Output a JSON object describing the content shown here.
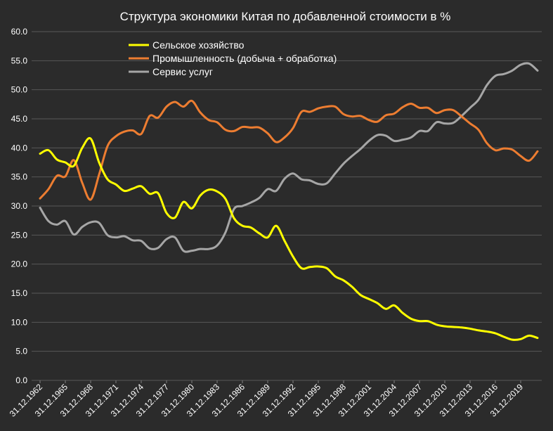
{
  "chart_data": {
    "type": "line",
    "title": "Структура экономики Китая по добавленной стоимости в %",
    "xlabel": "",
    "ylabel": "",
    "ylim": [
      0,
      60
    ],
    "yticks": [
      "0.0",
      "5.0",
      "10.0",
      "15.0",
      "20.0",
      "25.0",
      "30.0",
      "35.0",
      "40.0",
      "45.0",
      "50.0",
      "55.0",
      "60.0"
    ],
    "grid": true,
    "legend_position": "top-center",
    "x_tick_labels": [
      "31.12.1962",
      "31.12.1965",
      "31.12.1968",
      "31.12.1971",
      "31.12.1974",
      "31.12.1977",
      "31.12.1980",
      "31.12.1983",
      "31.12.1986",
      "31.12.1989",
      "31.12.1992",
      "31.12.1995",
      "31.12.1998",
      "31.12.2001",
      "31.12.2004",
      "31.12.2007",
      "31.12.2010",
      "31.12.2013",
      "31.12.2016",
      "31.12.2019"
    ],
    "x": [
      1962,
      1963,
      1964,
      1965,
      1966,
      1967,
      1968,
      1969,
      1970,
      1971,
      1972,
      1973,
      1974,
      1975,
      1976,
      1977,
      1978,
      1979,
      1980,
      1981,
      1982,
      1983,
      1984,
      1985,
      1986,
      1987,
      1988,
      1989,
      1990,
      1991,
      1992,
      1993,
      1994,
      1995,
      1996,
      1997,
      1998,
      1999,
      2000,
      2001,
      2002,
      2003,
      2004,
      2005,
      2006,
      2007,
      2008,
      2009,
      2010,
      2011,
      2012,
      2013,
      2014,
      2015,
      2016,
      2017,
      2018,
      2019,
      2020,
      2021
    ],
    "series": [
      {
        "name": "Сельское хозяйство",
        "color": "#ffff00",
        "values": [
          39.0,
          39.6,
          38.0,
          37.5,
          36.9,
          40.0,
          41.6,
          37.5,
          34.6,
          33.7,
          32.6,
          33.0,
          33.4,
          32.1,
          32.2,
          28.8,
          28.0,
          30.7,
          29.6,
          31.8,
          32.8,
          32.5,
          31.2,
          27.9,
          26.6,
          26.3,
          25.3,
          24.6,
          26.6,
          24.0,
          21.3,
          19.3,
          19.5,
          19.6,
          19.3,
          17.9,
          17.2,
          16.1,
          14.7,
          14.0,
          13.3,
          12.3,
          12.9,
          11.6,
          10.6,
          10.2,
          10.2,
          9.6,
          9.3,
          9.2,
          9.1,
          8.9,
          8.6,
          8.4,
          8.1,
          7.5,
          7.0,
          7.1,
          7.7,
          7.3
        ]
      },
      {
        "name": "Промышленность (добыча + обработка)",
        "color": "#ed7d31",
        "values": [
          31.3,
          32.9,
          35.2,
          35.1,
          37.9,
          34.0,
          31.1,
          35.4,
          40.3,
          42.0,
          42.8,
          43.0,
          42.4,
          45.5,
          45.2,
          47.1,
          47.9,
          47.1,
          48.1,
          46.1,
          44.8,
          44.4,
          43.1,
          42.9,
          43.6,
          43.5,
          43.5,
          42.5,
          41.0,
          41.8,
          43.4,
          46.2,
          46.2,
          46.8,
          47.1,
          47.1,
          45.8,
          45.4,
          45.5,
          44.8,
          44.5,
          45.6,
          45.9,
          47.0,
          47.6,
          46.9,
          46.9,
          46.0,
          46.5,
          46.5,
          45.4,
          44.2,
          43.1,
          40.8,
          39.6,
          39.9,
          39.7,
          38.6,
          37.8,
          39.4
        ]
      },
      {
        "name": "Сервис услуг",
        "color": "#a6a6a6",
        "values": [
          29.7,
          27.4,
          26.8,
          27.4,
          25.1,
          26.4,
          27.2,
          27.1,
          25.0,
          24.6,
          24.8,
          24.1,
          24.0,
          22.7,
          22.8,
          24.3,
          24.6,
          22.3,
          22.3,
          22.6,
          22.6,
          23.2,
          25.5,
          29.5,
          30.0,
          30.6,
          31.4,
          32.9,
          32.6,
          34.7,
          35.6,
          34.6,
          34.4,
          33.8,
          33.9,
          35.6,
          37.3,
          38.6,
          39.8,
          41.2,
          42.2,
          42.1,
          41.2,
          41.4,
          41.8,
          42.9,
          42.9,
          44.4,
          44.2,
          44.3,
          45.5,
          46.9,
          48.3,
          50.8,
          52.4,
          52.7,
          53.3,
          54.3,
          54.5,
          53.3
        ]
      }
    ]
  }
}
